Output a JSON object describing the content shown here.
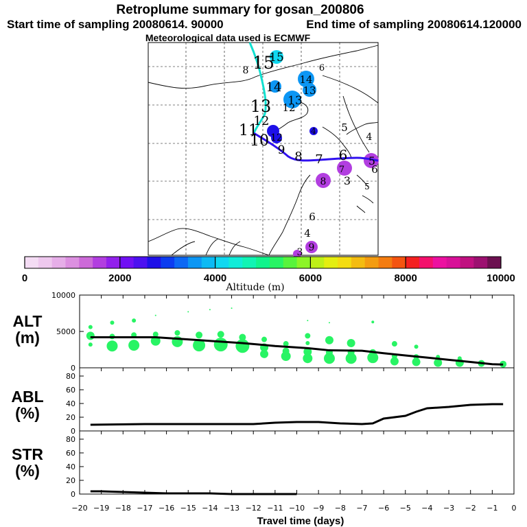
{
  "titles": {
    "main": "Retroplume summary for gosan_200806",
    "start": "Start time of sampling 20080614. 90000",
    "end": "End time of sampling 20080614.120000",
    "met": "Meteorological data used is ECMWF"
  },
  "colorbar": {
    "title": "Altitude (m)",
    "tick_labels": [
      "0",
      "2000",
      "4000",
      "6000",
      "8000",
      "10000"
    ],
    "colors": [
      "#f4dcf4",
      "#eec8ee",
      "#e6aee8",
      "#dc90e0",
      "#cc6ad8",
      "#b23ee0",
      "#9220ec",
      "#7010f4",
      "#4c10f0",
      "#1e10e8",
      "#0c3cf0",
      "#0c68f4",
      "#0c96f4",
      "#0cbaf4",
      "#10d8f0",
      "#10ecd8",
      "#10f4b4",
      "#10f48c",
      "#28f464",
      "#58f43c",
      "#8cf428",
      "#bef018",
      "#e4ee10",
      "#f4dc10",
      "#f4bc10",
      "#f49c10",
      "#f47c10",
      "#f45410",
      "#f42020",
      "#f4106c",
      "#ec10a0",
      "#d81098",
      "#c01080",
      "#9c1070",
      "#6c1050"
    ]
  },
  "map": {
    "plume_labels": [
      {
        "t": "15",
        "c": "#10d8f0"
      },
      {
        "t": "15",
        "c": "#10d8f0"
      },
      {
        "t": "8",
        "c": "#10d8f0"
      },
      {
        "t": "6",
        "c": "#e4ee10"
      },
      {
        "t": "14",
        "c": "#10aef4"
      },
      {
        "t": "14",
        "c": "#0c96f4"
      },
      {
        "t": "13",
        "c": "#0c96f4"
      },
      {
        "t": "13",
        "c": "#0c96f4"
      },
      {
        "t": "12",
        "c": "#0c96f4"
      },
      {
        "t": "13",
        "c": "#10c8f0"
      },
      {
        "t": "12",
        "c": "#10c8f0"
      },
      {
        "t": "4",
        "c": "#1e10e8"
      },
      {
        "t": "5",
        "c": "#10bef4"
      },
      {
        "t": "4",
        "c": "#10d8f0"
      },
      {
        "t": "11",
        "c": "#ffffff"
      },
      {
        "t": "12",
        "c": "#1e10e8"
      },
      {
        "t": "10",
        "c": "#ffffff"
      },
      {
        "t": "9",
        "c": "#ffffff"
      },
      {
        "t": "8",
        "c": "#ffffff"
      },
      {
        "t": "7",
        "c": "#ffffff"
      },
      {
        "t": "6",
        "c": "#ffffff"
      },
      {
        "t": "5",
        "c": "#ffffff"
      },
      {
        "t": "6",
        "c": "#ffffff"
      },
      {
        "t": "7",
        "c": "#b23ee0"
      },
      {
        "t": "8",
        "c": "#b23ee0"
      },
      {
        "t": "3",
        "c": "#ffffff"
      },
      {
        "t": "5",
        "c": "#b23ee0"
      },
      {
        "t": "6",
        "c": "#ffffff"
      },
      {
        "t": "4",
        "c": "#ffffff"
      },
      {
        "t": "9",
        "c": "#b23ee0"
      },
      {
        "t": "3",
        "c": "#b23ee0"
      }
    ]
  },
  "chart_data": [
    {
      "type": "line",
      "panel": "altitude",
      "ylabel_lines": [
        "ALT",
        "(m)"
      ],
      "ylim": [
        0,
        10000
      ],
      "yticks": [
        "0",
        "5000",
        "10000"
      ],
      "x": [
        -19.5,
        -17.5,
        -16.5,
        -15,
        -13.5,
        -12.5,
        -11,
        -9.5,
        -8.5,
        -7,
        -6,
        -5,
        -4,
        -3,
        -2,
        -1,
        -0.5
      ],
      "values": [
        4200,
        4200,
        4200,
        3900,
        3600,
        3400,
        3000,
        2700,
        2400,
        2350,
        2000,
        1700,
        1400,
        1100,
        800,
        500,
        450
      ],
      "markers": "green plume-member circles"
    },
    {
      "type": "line",
      "panel": "abl",
      "ylabel_lines": [
        "ABL",
        "(%)"
      ],
      "ylim": [
        0,
        90
      ],
      "yticks": [
        "0",
        "20",
        "40",
        "60",
        "80"
      ],
      "x": [
        -19.5,
        -17,
        -15,
        -13,
        -12,
        -11,
        -10,
        -9,
        -8,
        -7,
        -6.5,
        -6,
        -5,
        -4.5,
        -4,
        -3,
        -2,
        -1,
        -0.5
      ],
      "values": [
        9,
        10,
        10,
        10,
        10,
        12,
        13,
        13,
        11,
        10,
        11,
        18,
        22,
        28,
        33,
        35,
        38,
        39,
        39
      ]
    },
    {
      "type": "line",
      "panel": "str",
      "ylabel_lines": [
        "STR",
        "(%)"
      ],
      "ylim": [
        0,
        90
      ],
      "yticks": [
        "0",
        "20",
        "40",
        "60",
        "80"
      ],
      "x": [
        -19.5,
        -19,
        -18,
        -17,
        -16,
        -15,
        -14,
        -13,
        -12,
        -11,
        -10
      ],
      "values": [
        4,
        4,
        3,
        2,
        1,
        1,
        1,
        0,
        0,
        0,
        0
      ]
    }
  ],
  "xaxis": {
    "title": "Travel time (days)",
    "tick_labels": [
      "−20",
      "−19",
      "−18",
      "−17",
      "−16",
      "−15",
      "−14",
      "−13",
      "−12",
      "−11",
      "−10",
      "−9",
      "−8",
      "−7",
      "−6",
      "−5",
      "−4",
      "−3",
      "−2",
      "−1",
      "0"
    ]
  }
}
